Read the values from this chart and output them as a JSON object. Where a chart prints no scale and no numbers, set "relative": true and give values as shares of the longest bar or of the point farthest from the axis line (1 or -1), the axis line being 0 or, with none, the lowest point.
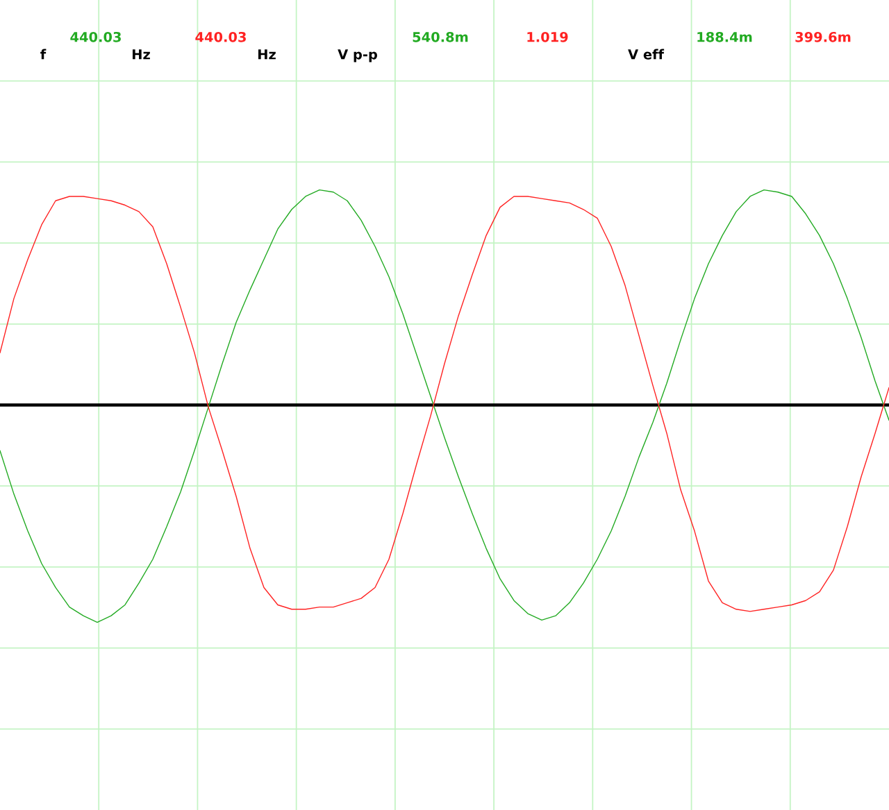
{
  "chart_data": {
    "type": "line",
    "relative": true,
    "categories": [
      null,
      null,
      null,
      null,
      null,
      null,
      null,
      null,
      null,
      null,
      null,
      null,
      null,
      null,
      null,
      null,
      null,
      null,
      null,
      null,
      null,
      null,
      null,
      null,
      null,
      null,
      null,
      null,
      null,
      null,
      null,
      null,
      null,
      null,
      null,
      null,
      null,
      null,
      null,
      null,
      null,
      null,
      null,
      null,
      null,
      null,
      null,
      null,
      null,
      null,
      null,
      null,
      null,
      null,
      null,
      null,
      null,
      null,
      null,
      null,
      null,
      null,
      null,
      null,
      null
    ],
    "series": [
      {
        "color": "#22aa22",
        "values": [
          -0.21,
          -0.41,
          -0.58,
          -0.73,
          -0.84,
          -0.93,
          -0.97,
          -1.0,
          -0.97,
          -0.92,
          -0.82,
          -0.71,
          -0.56,
          -0.4,
          -0.21,
          -0.01,
          0.19,
          0.38,
          0.53,
          0.67,
          0.81,
          0.9,
          0.96,
          0.99,
          0.98,
          0.94,
          0.85,
          0.73,
          0.59,
          0.42,
          0.23,
          0.04,
          -0.15,
          -0.33,
          -0.5,
          -0.66,
          -0.8,
          -0.9,
          -0.96,
          -0.99,
          -0.97,
          -0.91,
          -0.82,
          -0.71,
          -0.58,
          -0.42,
          -0.24,
          -0.08,
          0.1,
          0.3,
          0.49,
          0.65,
          0.78,
          0.89,
          0.96,
          0.99,
          0.98,
          0.96,
          0.88,
          0.78,
          0.65,
          0.49,
          0.31,
          0.11,
          -0.07
        ]
      },
      {
        "color": "#ff2222",
        "values": [
          0.24,
          0.49,
          0.67,
          0.83,
          0.94,
          0.96,
          0.96,
          0.95,
          0.94,
          0.92,
          0.89,
          0.82,
          0.65,
          0.45,
          0.24,
          -0.01,
          -0.21,
          -0.42,
          -0.66,
          -0.84,
          -0.92,
          -0.94,
          -0.94,
          -0.93,
          -0.93,
          -0.91,
          -0.89,
          -0.84,
          -0.71,
          -0.5,
          -0.27,
          -0.05,
          0.19,
          0.41,
          0.6,
          0.78,
          0.91,
          0.96,
          0.96,
          0.95,
          0.94,
          0.93,
          0.9,
          0.86,
          0.73,
          0.55,
          0.32,
          0.09,
          -0.13,
          -0.39,
          -0.58,
          -0.81,
          -0.91,
          -0.94,
          -0.95,
          -0.94,
          -0.93,
          -0.92,
          -0.9,
          -0.86,
          -0.76,
          -0.56,
          -0.33,
          -0.13,
          0.08
        ]
      }
    ],
    "annotations": [
      "f",
      "440.03",
      "Hz",
      "440.03",
      "Hz",
      "V p-p",
      "540.8m",
      "1.019",
      "V eff",
      "188.4m",
      "399.6m"
    ],
    "grid": true,
    "tick_labels": false
  }
}
